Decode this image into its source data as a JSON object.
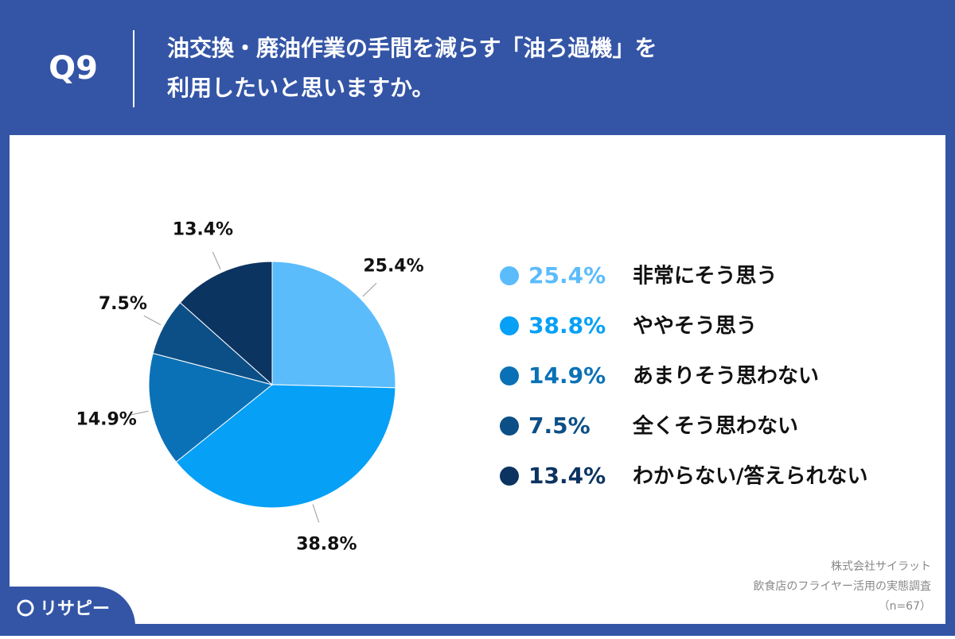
{
  "question": "Q9",
  "chart_data": {
    "type": "pie",
    "title": [
      "油交換・廃油作業の手間を減らす「油ろ過機」を",
      "利用したいと思いますか。"
    ],
    "categories": [
      "非常にそう思う",
      "ややそう思う",
      "あまりそう思わない",
      "全くそう思わない",
      "わからない/答えられない"
    ],
    "values": [
      25.4,
      38.8,
      14.9,
      7.5,
      13.4
    ],
    "value_labels": [
      "25.4%",
      "38.8%",
      "14.9%",
      "7.5%",
      "13.4%"
    ],
    "colors": [
      "#5bbcfc",
      "#06a0f6",
      "#0b71b6",
      "#0c4f86",
      "#0c3461"
    ],
    "legend": "right"
  },
  "source": [
    "株式会社サイラット",
    "飲食店のフライヤー活用の実態調査",
    "（n=67）"
  ],
  "logo": "リサピー"
}
